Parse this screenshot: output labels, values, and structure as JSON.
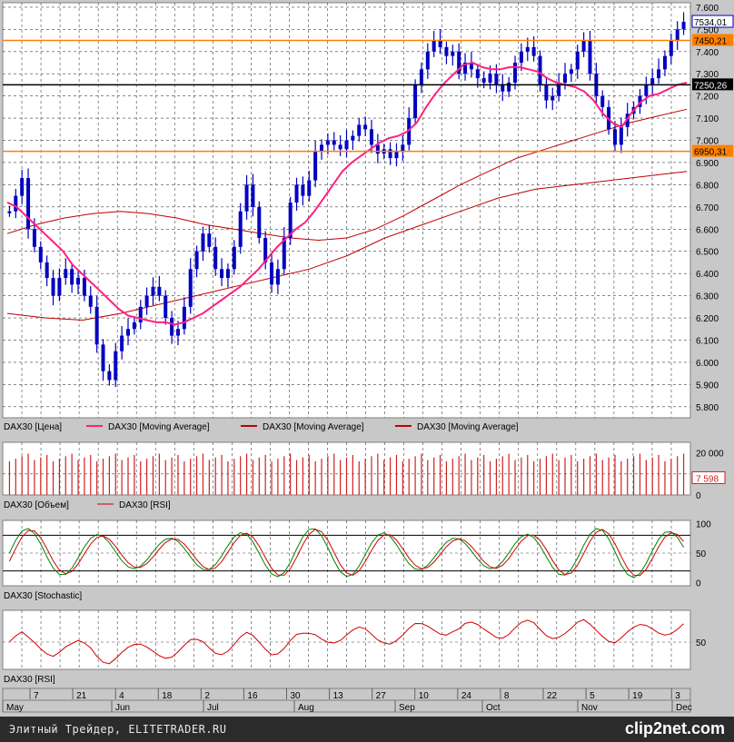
{
  "chart_data": {
    "type": "candlestick",
    "instrument": "DAX30",
    "price_axis": {
      "ticks": [
        "7.600",
        "7.500",
        "7.400",
        "7.300",
        "7.200",
        "7.100",
        "7.000",
        "6.900",
        "6.800",
        "6.700",
        "6.600",
        "6.500",
        "6.400",
        "6.300",
        "6.200",
        "6.100",
        "6.000",
        "5.900",
        "5.800"
      ],
      "ylim": [
        5750,
        7620
      ]
    },
    "last_price_label": "7534,01",
    "horizontal_levels": [
      {
        "value": 7450.21,
        "label": "7450,21",
        "color": "#ff8000"
      },
      {
        "value": 7250.26,
        "label": "7250,26",
        "color": "#000000"
      },
      {
        "value": 6950.31,
        "label": "6950,31",
        "color": "#ff8000"
      }
    ],
    "price_legend": [
      "DAX30 [Цена]",
      "DAX30 [Moving Average]",
      "DAX30 [Moving Average]",
      "DAX30 [Moving Average]"
    ],
    "price_series_estimate": [
      6680,
      6750,
      6830,
      6600,
      6520,
      6450,
      6380,
      6300,
      6380,
      6420,
      6350,
      6380,
      6300,
      6250,
      6080,
      5960,
      5920,
      6050,
      6120,
      6150,
      6180,
      6250,
      6300,
      6340,
      6300,
      6200,
      6120,
      6150,
      6250,
      6420,
      6500,
      6580,
      6520,
      6420,
      6380,
      6420,
      6520,
      6680,
      6800,
      6700,
      6560,
      6450,
      6350,
      6420,
      6560,
      6720,
      6800,
      6750,
      6820,
      6950,
      6980,
      7000,
      6980,
      6960,
      7000,
      7020,
      7070,
      7050,
      6980,
      6940,
      6960,
      6920,
      6950,
      6980,
      7100,
      7250,
      7320,
      7400,
      7450,
      7420,
      7380,
      7400,
      7300,
      7350,
      7320,
      7280,
      7260,
      7300,
      7250,
      7220,
      7260,
      7350,
      7400,
      7420,
      7380,
      7250,
      7180,
      7200,
      7260,
      7300,
      7320,
      7400,
      7450,
      7300,
      7200,
      7150,
      7050,
      6980,
      7060,
      7120,
      7150,
      7200,
      7250,
      7280,
      7320,
      7380,
      7450,
      7500,
      7534
    ],
    "ma_fast_estimate": [
      6720,
      6700,
      6660,
      6620,
      6580,
      6540,
      6500,
      6440,
      6400,
      6360,
      6320,
      6280,
      6240,
      6210,
      6200,
      6190,
      6180,
      6180,
      6170,
      6180,
      6200,
      6220,
      6250,
      6280,
      6310,
      6340,
      6380,
      6420,
      6470,
      6520,
      6560,
      6600,
      6630,
      6680,
      6740,
      6800,
      6860,
      6900,
      6930,
      6960,
      6990,
      7010,
      7020,
      7040,
      7080,
      7150,
      7210,
      7260,
      7300,
      7340,
      7350,
      7330,
      7320,
      7320,
      7330,
      7330,
      7320,
      7310,
      7280,
      7260,
      7250,
      7240,
      7220,
      7180,
      7120,
      7080,
      7060,
      7120,
      7170,
      7200,
      7210,
      7230,
      7250,
      7260
    ],
    "ma_mid_estimate": [
      6580,
      6620,
      6650,
      6670,
      6680,
      6670,
      6650,
      6620,
      6600,
      6580,
      6560,
      6550,
      6560,
      6600,
      6660,
      6730,
      6800,
      6860,
      6920,
      6960,
      7000,
      7040,
      7080,
      7110,
      7140
    ],
    "ma_slow_estimate": [
      6220,
      6200,
      6190,
      6220,
      6260,
      6300,
      6340,
      6380,
      6420,
      6480,
      6560,
      6620,
      6680,
      6740,
      6780,
      6800,
      6820,
      6840,
      6860
    ],
    "x_ticks": [
      "7",
      "21",
      "4",
      "18",
      "2",
      "16",
      "30",
      "13",
      "27",
      "10",
      "24",
      "8",
      "22",
      "5",
      "19",
      "3"
    ],
    "months": [
      "May",
      "Jun",
      "Jul",
      "Aug",
      "Sep",
      "Oct",
      "Nov",
      "Dec"
    ],
    "volume_axis": {
      "ticks": [
        "20 000",
        "0"
      ]
    },
    "volume_value_label": "7 598",
    "volume_legend": [
      "DAX30 [Объем]",
      "DAX30 [RSI]"
    ],
    "stochastic_axis": {
      "ticks": [
        "100",
        "50",
        "0"
      ]
    },
    "stochastic_legend": [
      "DAX30 [Stochastic]"
    ],
    "rsi_axis": {
      "ticks": [
        "50"
      ]
    },
    "rsi_legend": [
      "DAX30 [RSI]"
    ]
  },
  "footer": {
    "text": "Элитный Трейдер, ELITETRADER.RU",
    "logo_pre": "clip",
    "logo_num": "2",
    "logo_post": "net.com"
  }
}
